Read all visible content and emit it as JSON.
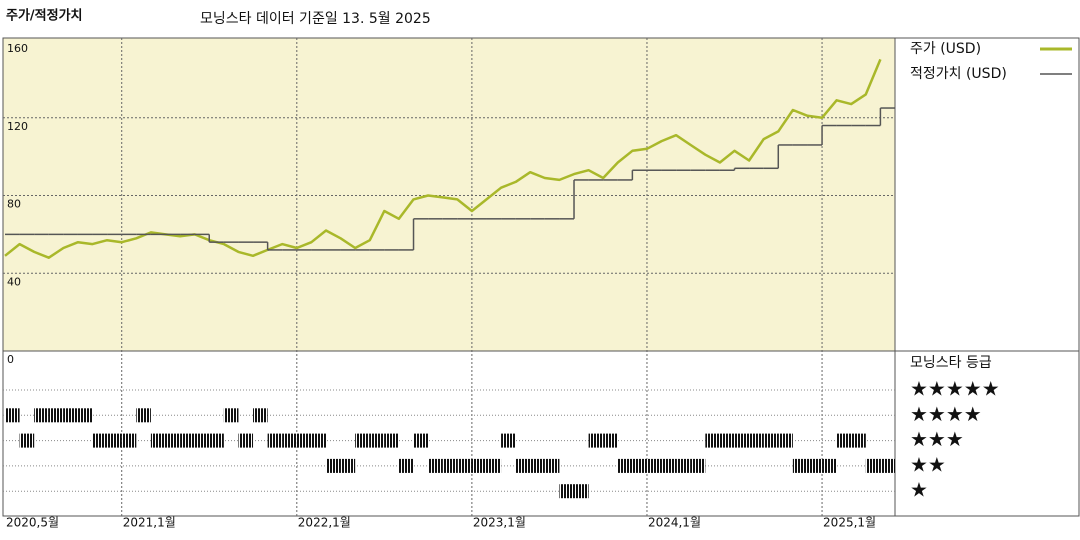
{
  "chart_data": {
    "type": "line",
    "title": "주가/적정가치",
    "subtitle": "모닝스타 데이터 기준일 13. 5월 2025",
    "x": [
      "2020-05",
      "2020-06",
      "2020-07",
      "2020-08",
      "2020-09",
      "2020-10",
      "2020-11",
      "2020-12",
      "2021-01",
      "2021-02",
      "2021-03",
      "2021-04",
      "2021-05",
      "2021-06",
      "2021-07",
      "2021-08",
      "2021-09",
      "2021-10",
      "2021-11",
      "2021-12",
      "2022-01",
      "2022-02",
      "2022-03",
      "2022-04",
      "2022-05",
      "2022-06",
      "2022-07",
      "2022-08",
      "2022-09",
      "2022-10",
      "2022-11",
      "2022-12",
      "2023-01",
      "2023-02",
      "2023-03",
      "2023-04",
      "2023-05",
      "2023-06",
      "2023-07",
      "2023-08",
      "2023-09",
      "2023-10",
      "2023-11",
      "2023-12",
      "2024-01",
      "2024-02",
      "2024-03",
      "2024-04",
      "2024-05",
      "2024-06",
      "2024-07",
      "2024-08",
      "2024-09",
      "2024-10",
      "2024-11",
      "2024-12",
      "2025-01",
      "2025-02",
      "2025-03",
      "2025-04",
      "2025-05"
    ],
    "series": [
      {
        "name": "주가 (USD)",
        "color": "#a9b82a",
        "values": [
          49,
          55,
          51,
          48,
          53,
          56,
          55,
          57,
          56,
          58,
          61,
          60,
          59,
          60,
          57,
          55,
          51,
          49,
          52,
          55,
          53,
          56,
          62,
          58,
          53,
          57,
          72,
          68,
          78,
          80,
          79,
          78,
          72,
          78,
          84,
          87,
          92,
          89,
          88,
          91,
          93,
          89,
          97,
          103,
          104,
          108,
          111,
          106,
          101,
          97,
          103,
          98,
          109,
          113,
          124,
          121,
          120,
          129,
          127,
          132,
          150
        ]
      },
      {
        "name": "적정가치 (USD)",
        "color": "#555555",
        "step": true,
        "values": [
          60,
          60,
          60,
          60,
          60,
          60,
          60,
          60,
          60,
          60,
          60,
          60,
          60,
          60,
          56,
          56,
          56,
          56,
          52,
          52,
          52,
          52,
          52,
          52,
          52,
          52,
          52,
          52,
          68,
          68,
          68,
          68,
          68,
          68,
          68,
          68,
          68,
          68,
          68,
          88,
          88,
          88,
          88,
          93,
          93,
          93,
          93,
          93,
          93,
          93,
          94,
          94,
          94,
          106,
          106,
          106,
          116,
          116,
          116,
          116,
          125
        ]
      }
    ],
    "xlim": [
      "2020-05",
      "2025-06"
    ],
    "xticks": [
      {
        "value": "2020-05",
        "label": "2020,5월"
      },
      {
        "value": "2021-01",
        "label": "2021,1월"
      },
      {
        "value": "2022-01",
        "label": "2022,1월"
      },
      {
        "value": "2023-01",
        "label": "2023,1월"
      },
      {
        "value": "2024-01",
        "label": "2024,1월"
      },
      {
        "value": "2025-01",
        "label": "2025,1월"
      }
    ],
    "ylim": [
      0,
      160
    ],
    "yticks": [
      0,
      40,
      80,
      120,
      160
    ],
    "grid": true,
    "rating": {
      "title": "모닝스타 등급",
      "levels": [
        {
          "value": 5,
          "label": "★★★★★"
        },
        {
          "value": 4,
          "label": "★★★★"
        },
        {
          "value": 3,
          "label": "★★★"
        },
        {
          "value": 2,
          "label": "★★"
        },
        {
          "value": 1,
          "label": "★"
        }
      ],
      "values": [
        4,
        3,
        4,
        4,
        4,
        4,
        3,
        3,
        3,
        4,
        3,
        3,
        3,
        3,
        3,
        4,
        3,
        4,
        3,
        3,
        3,
        3,
        2,
        2,
        3,
        3,
        3,
        2,
        3,
        2,
        2,
        2,
        2,
        2,
        3,
        2,
        2,
        2,
        1,
        1,
        3,
        3,
        2,
        2,
        2,
        2,
        2,
        2,
        3,
        3,
        3,
        3,
        3,
        3,
        2,
        2,
        2,
        3,
        3,
        2,
        2
      ]
    }
  }
}
